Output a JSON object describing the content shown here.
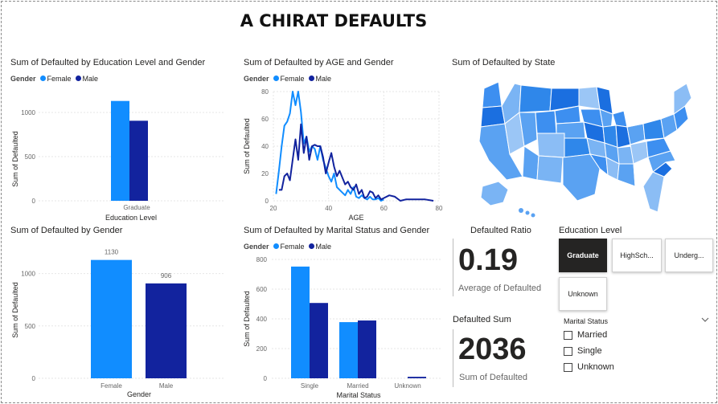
{
  "dashboard_title": "A CHIRAT DEFAULTS",
  "colors": {
    "female": "#118DFF",
    "male": "#12239E",
    "selected_tile": "#252423"
  },
  "edu_chart": {
    "title": "Sum of Defaulted by Education Level and Gender",
    "legend_title": "Gender",
    "chart_data": {
      "type": "bar",
      "title": "Sum of Defaulted by Education Level and Gender",
      "categories": [
        "Graduate"
      ],
      "series": [
        {
          "name": "Female",
          "values": [
            1130
          ]
        },
        {
          "name": "Male",
          "values": [
            906
          ]
        }
      ],
      "xlabel": "Education Level",
      "ylabel": "Sum of Defaulted",
      "yticks": [
        "0",
        "500",
        "1000"
      ],
      "ylim": [
        0,
        1200
      ]
    }
  },
  "age_chart": {
    "title": "Sum of Defaulted by AGE and Gender",
    "legend_title": "Gender",
    "chart_data": {
      "type": "line",
      "title": "Sum of Defaulted by AGE and Gender",
      "xlabel": "AGE",
      "ylabel": "Sum of Defaulted",
      "xlim": [
        20,
        80
      ],
      "ylim": [
        0,
        80
      ],
      "xticks": [
        "20",
        "40",
        "60",
        "80"
      ],
      "yticks": [
        "0",
        "20",
        "40",
        "60",
        "80"
      ],
      "series": [
        {
          "name": "Female",
          "x": [
            21,
            22,
            23,
            24,
            25,
            26,
            27,
            28,
            29,
            30,
            31,
            32,
            33,
            34,
            35,
            36,
            37,
            38,
            39,
            40,
            41,
            42,
            43,
            44,
            45,
            46,
            47,
            48,
            49,
            50,
            51,
            52,
            53,
            54,
            55,
            56,
            57,
            58,
            59,
            60
          ],
          "values": [
            5,
            22,
            40,
            55,
            58,
            64,
            80,
            70,
            80,
            65,
            42,
            47,
            36,
            40,
            38,
            30,
            40,
            30,
            24,
            18,
            14,
            20,
            10,
            8,
            6,
            4,
            8,
            5,
            10,
            3,
            2,
            4,
            2,
            1,
            3,
            1,
            1,
            2,
            0,
            1
          ]
        },
        {
          "name": "Male",
          "x": [
            22,
            23,
            24,
            25,
            26,
            27,
            28,
            29,
            30,
            31,
            32,
            33,
            34,
            35,
            36,
            37,
            38,
            39,
            40,
            41,
            42,
            43,
            44,
            45,
            46,
            47,
            48,
            49,
            50,
            51,
            52,
            53,
            54,
            55,
            56,
            57,
            58,
            59,
            60,
            62,
            64,
            66,
            68,
            70,
            72,
            75,
            78
          ],
          "values": [
            8,
            8,
            18,
            20,
            15,
            30,
            45,
            30,
            56,
            35,
            47,
            30,
            40,
            41,
            40,
            40,
            32,
            20,
            28,
            35,
            25,
            18,
            22,
            17,
            12,
            14,
            10,
            8,
            12,
            5,
            8,
            2,
            3,
            7,
            6,
            2,
            4,
            1,
            2,
            4,
            3,
            0,
            1,
            1,
            1,
            1,
            0
          ]
        }
      ]
    }
  },
  "state_chart": {
    "title": "Sum of Defaulted by State"
  },
  "gender_chart": {
    "title": "Sum of Defaulted by Gender",
    "chart_data": {
      "type": "bar",
      "title": "Sum of Defaulted by Gender",
      "categories": [
        "Female",
        "Male"
      ],
      "values": [
        1130,
        906
      ],
      "labels": [
        "1130",
        "906"
      ],
      "xlabel": "Gender",
      "ylabel": "Sum of Defaulted",
      "yticks": [
        "0",
        "500",
        "1000"
      ],
      "ylim": [
        0,
        1250
      ]
    }
  },
  "marital_chart": {
    "title": "Sum of Defaulted by Marital Status and Gender",
    "legend_title": "Gender",
    "chart_data": {
      "type": "bar",
      "title": "Sum of Defaulted by Marital Status and Gender",
      "categories": [
        "Single",
        "Married",
        "Unknown"
      ],
      "series": [
        {
          "name": "Female",
          "values": [
            752,
            378,
            0
          ]
        },
        {
          "name": "Male",
          "values": [
            507,
            389,
            10
          ]
        }
      ],
      "xlabel": "Marital Status",
      "ylabel": "Sum of Defaulted",
      "yticks": [
        "0",
        "200",
        "400",
        "600",
        "800"
      ],
      "ylim": [
        0,
        800
      ]
    }
  },
  "kpi_ratio": {
    "title": "Defaulted Ratio",
    "value": "0.19",
    "subtitle": "Average of Defaulted"
  },
  "kpi_sum": {
    "title": "Defaulted Sum",
    "value": "2036",
    "subtitle": "Sum of Defaulted"
  },
  "edu_slicer": {
    "title": "Education Level",
    "tiles": [
      "Graduate",
      "HighSch...",
      "Underg...",
      "Unknown"
    ],
    "selected": "Graduate"
  },
  "marital_slicer": {
    "title": "Marital Status",
    "options": [
      "Married",
      "Single",
      "Unknown"
    ]
  }
}
